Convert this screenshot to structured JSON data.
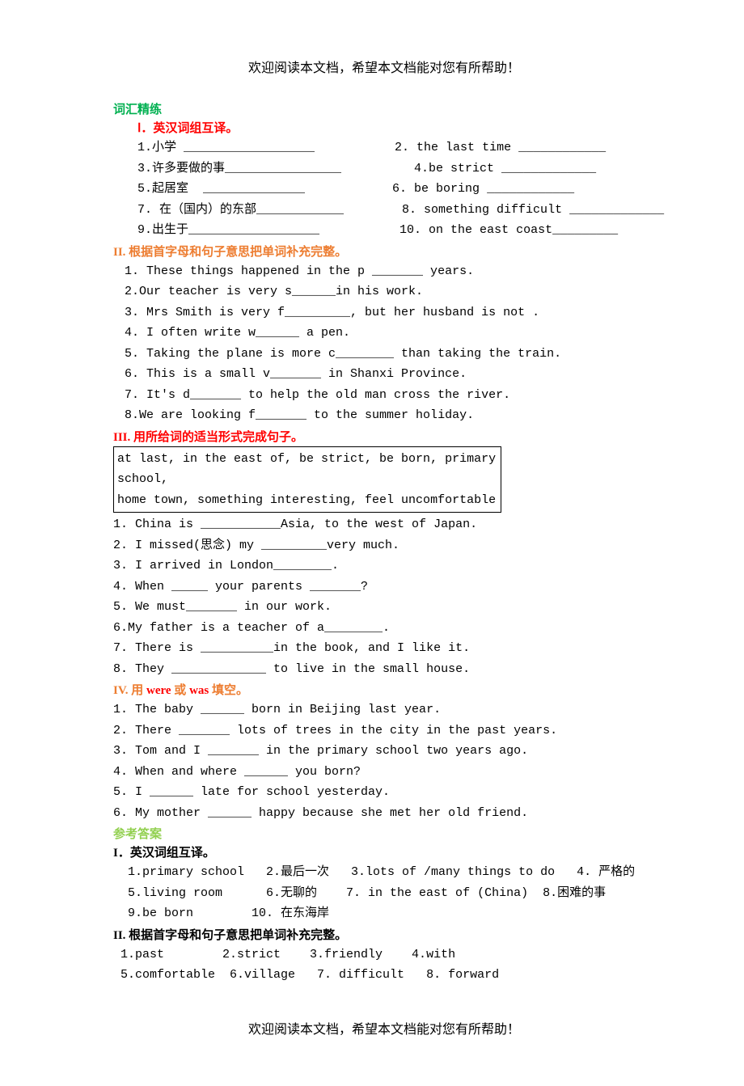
{
  "header": "欢迎阅读本文档，希望本文档能对您有所帮助！",
  "footer": "欢迎阅读本文档，希望本文档能对您有所帮助！",
  "main_title": "词汇精练",
  "sec1": {
    "title": "Ⅰ．英汉词组互译。",
    "rows": [
      "1.小学 __________________           2. the last time ____________",
      "3.许多要做的事________________          4.be strict _____________",
      "5.起居室  ______________            6. be boring ____________",
      "7. 在（国内）的东部____________        8. something difficult _____________",
      "9.出生于__________________           10. on the east coast_________"
    ]
  },
  "sec2": {
    "title": "II. 根据首字母和句子意思把单词补充完整。",
    "items": [
      "1. These things happened in the p _______ years.",
      "2.Our teacher is very s______in his work.",
      "3. Mrs Smith is very f_________, but her husband is not .",
      "4. I often write w______ a pen.",
      "5. Taking the plane is more c________ than taking the train.",
      "6. This is a small v_______ in Shanxi Province.",
      "7. It's d_______ to help the old man cross the river.",
      "8.We are looking f_______ to the summer holiday."
    ]
  },
  "sec3": {
    "title": "III. 用所给词的适当形式完成句子。",
    "box": [
      "at last, in the east of, be strict, be born, primary school,",
      "home town, something interesting, feel uncomfortable"
    ],
    "items": [
      "1. China is ___________Asia, to the west of Japan.",
      "2. I missed(思念) my _________very much.",
      "3. I arrived in London________.",
      "4. When _____ your parents _______?",
      "5. We must_______ in our work.",
      "6.My father is a teacher of a________.",
      "7. There is __________in the book, and I like it.",
      "8. They _____________ to live in the small house."
    ]
  },
  "sec4": {
    "title": "IV. 用 were 或 was 填空。",
    "items": [
      "1. The baby ______ born in Beijing last year.",
      "2. There _______ lots of trees in the city in the past years.",
      "3. Tom and I _______ in the primary school two years ago.",
      "4. When and where ______ you born?",
      "5. I ______ late for school yesterday.",
      "6. My mother ______ happy because she met her old friend."
    ]
  },
  "answers": {
    "title": "参考答案",
    "sec1_title": "I．英汉词组互译。",
    "sec1_rows": [
      "  1.primary school   2.最后一次   3.lots of /many things to do   4. 严格的",
      "  5.living room      6.无聊的    7. in the east of (China)  8.困难的事",
      "  9.be born        10. 在东海岸"
    ],
    "sec2_title": "II. 根据首字母和句子意思把单词补充完整。",
    "sec2_rows": [
      " 1.past        2.strict    3.friendly    4.with",
      " 5.comfortable  6.village   7. difficult   8. forward"
    ]
  },
  "colors": {
    "green": "#00b050",
    "red": "#ff0000",
    "orange": "#ed7d31",
    "lime": "#92d050",
    "text": "#000000",
    "background": "#ffffff"
  },
  "typography": {
    "body_fontsize": 15,
    "header_fontsize": 16,
    "line_height": 1.7
  }
}
